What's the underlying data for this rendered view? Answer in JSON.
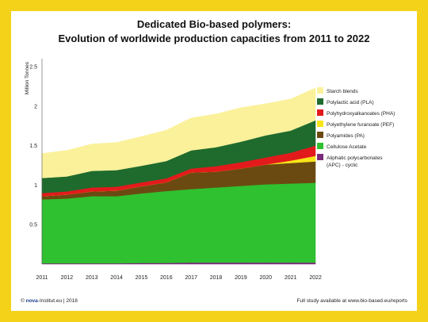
{
  "chart_data": {
    "type": "area",
    "stacked": true,
    "title": "Dedicated Bio-based polymers:",
    "subtitle": "Evolution of worldwide production capacities from 2011 to 2022",
    "ylabel": "Million Tonnes",
    "xlabel": "",
    "x": [
      2011,
      2012,
      2013,
      2014,
      2015,
      2016,
      2017,
      2018,
      2019,
      2020,
      2021,
      2022
    ],
    "ylim": [
      0,
      2.5
    ],
    "yticks": [
      "0.5",
      "1",
      "1.5",
      "2",
      "2.5"
    ],
    "xticks": [
      "2011",
      "2012",
      "2013",
      "2014",
      "2015",
      "2016",
      "2017",
      "2018",
      "2019",
      "2020",
      "2021",
      "2022"
    ],
    "grid": false,
    "legend_position": "right",
    "series": [
      {
        "name": "Aliphatic polycarbonates (APC) - cyclic",
        "color": "#7b2a7a",
        "values": [
          0.01,
          0.01,
          0.01,
          0.01,
          0.015,
          0.015,
          0.02,
          0.02,
          0.02,
          0.02,
          0.02,
          0.02
        ]
      },
      {
        "name": "Cellulose Acetate",
        "color": "#2fc12f",
        "values": [
          0.81,
          0.82,
          0.85,
          0.85,
          0.88,
          0.91,
          0.93,
          0.95,
          0.97,
          0.99,
          1.0,
          1.01
        ]
      },
      {
        "name": "Polyamides (PA)",
        "color": "#6b4a12",
        "values": [
          0.04,
          0.05,
          0.06,
          0.07,
          0.09,
          0.11,
          0.21,
          0.2,
          0.22,
          0.25,
          0.26,
          0.27
        ]
      },
      {
        "name": "Polyethylene furanoate (PEF)",
        "color": "#f8e419",
        "values": [
          0.0,
          0.0,
          0.0,
          0.0,
          0.0,
          0.0,
          0.0,
          0.0,
          0.0,
          0.0,
          0.03,
          0.07
        ]
      },
      {
        "name": "Polyhydroxyalkanoates (PHA)",
        "color": "#e31a1c",
        "values": [
          0.04,
          0.04,
          0.05,
          0.05,
          0.05,
          0.05,
          0.05,
          0.07,
          0.08,
          0.09,
          0.1,
          0.13
        ]
      },
      {
        "name": "Polylactic acid (PLA)",
        "color": "#1f6b2e",
        "values": [
          0.19,
          0.19,
          0.21,
          0.21,
          0.21,
          0.22,
          0.23,
          0.24,
          0.26,
          0.28,
          0.28,
          0.32
        ]
      },
      {
        "name": "Starch blends",
        "color": "#fbf19a",
        "values": [
          0.31,
          0.33,
          0.34,
          0.35,
          0.37,
          0.39,
          0.41,
          0.42,
          0.43,
          0.4,
          0.4,
          0.41
        ]
      }
    ],
    "legend_order": [
      "Starch blends",
      "Polylactic acid (PLA)",
      "Polyhydroxyalkanoates (PHA)",
      "Polyethylene furanoate (PEF)",
      "Polyamides (PA)",
      "Cellulose Acetate",
      "Aliphatic polycarbonates (APC) - cyclic"
    ]
  },
  "footer": {
    "copyright": "©",
    "logo_text": "nova",
    "institute": "-Institut.eu | 2018",
    "study_note": "Full study available at www.bio-based.eu/reports"
  }
}
